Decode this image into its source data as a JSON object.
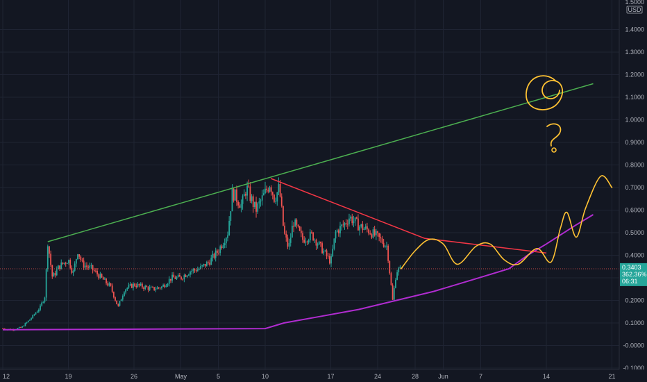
{
  "chart_data": {
    "type": "line",
    "currency": "USD",
    "y_axis": {
      "ticks": [
        1.4,
        1.3,
        1.2,
        1.1,
        1.0,
        0.9,
        0.8,
        0.7,
        0.6,
        0.5,
        0.4,
        0.3,
        0.2,
        0.1,
        0.0,
        -0.1
      ],
      "tick_labels": [
        "1.4000",
        "1.3000",
        "1.2000",
        "1.1000",
        "1.0000",
        "0.9000",
        "0.8000",
        "0.7000",
        "0.6000",
        "0.5000",
        "0.4000",
        "0.3000",
        "0.2000",
        "0.1000",
        "-0.0000",
        "-0.1000"
      ],
      "top_label": "1.5000",
      "ylim": [
        -0.12,
        1.52
      ]
    },
    "x_axis": {
      "xlim": [
        0,
        73
      ],
      "ticks": [
        0,
        7,
        14,
        19,
        23,
        28,
        35,
        40,
        44,
        47,
        51,
        58,
        65
      ],
      "tick_labels": [
        "12",
        "19",
        "26",
        "May",
        "5",
        "10",
        "17",
        "24",
        "28",
        "Jun",
        "7",
        "14",
        "21"
      ]
    },
    "current_price": {
      "value": 0.3403,
      "label": "0.3403",
      "change": "362.36%",
      "timer": "06:31",
      "color": "#26a69a"
    },
    "price_path": [
      [
        0,
        0.075
      ],
      [
        1,
        0.07
      ],
      [
        2,
        0.08
      ],
      [
        3,
        0.12
      ],
      [
        4,
        0.17
      ],
      [
        4.5,
        0.22
      ],
      [
        4.8,
        0.46
      ],
      [
        5.3,
        0.3
      ],
      [
        6,
        0.35
      ],
      [
        7,
        0.38
      ],
      [
        7.5,
        0.32
      ],
      [
        8,
        0.42
      ],
      [
        8.5,
        0.36
      ],
      [
        9.5,
        0.34
      ],
      [
        10.5,
        0.3
      ],
      [
        11.5,
        0.26
      ],
      [
        12.3,
        0.17
      ],
      [
        13,
        0.25
      ],
      [
        14,
        0.27
      ],
      [
        15,
        0.26
      ],
      [
        16,
        0.25
      ],
      [
        17,
        0.26
      ],
      [
        18,
        0.3
      ],
      [
        19,
        0.3
      ],
      [
        20,
        0.33
      ],
      [
        21,
        0.34
      ],
      [
        22,
        0.37
      ],
      [
        23,
        0.42
      ],
      [
        24,
        0.5
      ],
      [
        24.5,
        0.68
      ],
      [
        25.5,
        0.62
      ],
      [
        26,
        0.7
      ],
      [
        27,
        0.6
      ],
      [
        27.8,
        0.66
      ],
      [
        28.5,
        0.72
      ],
      [
        29,
        0.65
      ],
      [
        29.5,
        0.7
      ],
      [
        30,
        0.5
      ],
      [
        30.5,
        0.43
      ],
      [
        31,
        0.55
      ],
      [
        32,
        0.47
      ],
      [
        33,
        0.49
      ],
      [
        34,
        0.43
      ],
      [
        35,
        0.37
      ],
      [
        35.5,
        0.5
      ],
      [
        36.5,
        0.54
      ],
      [
        37,
        0.57
      ],
      [
        38,
        0.53
      ],
      [
        39,
        0.51
      ],
      [
        40,
        0.48
      ],
      [
        41,
        0.44
      ],
      [
        41.6,
        0.2
      ],
      [
        42,
        0.33
      ],
      [
        42.5,
        0.34
      ]
    ],
    "green_trendline": [
      [
        4.8,
        0.46
      ],
      [
        63,
        1.16
      ]
    ],
    "red_trendline": [
      [
        28.6,
        0.74
      ],
      [
        45,
        0.475
      ],
      [
        58,
        0.41
      ]
    ],
    "purple_ma": [
      [
        0,
        0.07
      ],
      [
        28,
        0.075
      ],
      [
        30,
        0.1
      ],
      [
        34,
        0.13
      ],
      [
        38,
        0.16
      ],
      [
        42,
        0.2
      ],
      [
        46,
        0.24
      ],
      [
        50,
        0.29
      ],
      [
        54,
        0.34
      ],
      [
        56,
        0.4
      ],
      [
        58,
        0.45
      ],
      [
        61,
        0.53
      ],
      [
        63,
        0.58
      ]
    ],
    "yellow_projection": [
      [
        42.5,
        0.34
      ],
      [
        44,
        0.42
      ],
      [
        45.5,
        0.47
      ],
      [
        47,
        0.45
      ],
      [
        48.5,
        0.36
      ],
      [
        50.5,
        0.44
      ],
      [
        52,
        0.45
      ],
      [
        53.5,
        0.38
      ],
      [
        55,
        0.36
      ],
      [
        57,
        0.43
      ],
      [
        58.5,
        0.37
      ],
      [
        59.5,
        0.52
      ],
      [
        60.2,
        0.59
      ],
      [
        61.2,
        0.48
      ],
      [
        62.2,
        0.61
      ],
      [
        63.8,
        0.75
      ],
      [
        65,
        0.7
      ]
    ],
    "dotted_price_line": 0.34,
    "annotations": {
      "digit": "6",
      "mark": "?"
    },
    "colors": {
      "background": "#131722",
      "green": "#4caf50",
      "red": "#f23645",
      "purple": "#b02cd0",
      "yellow": "#ffc233",
      "candle_up": "#26a69a",
      "candle_down": "#ef5350"
    },
    "grid": true,
    "legend": "none"
  }
}
